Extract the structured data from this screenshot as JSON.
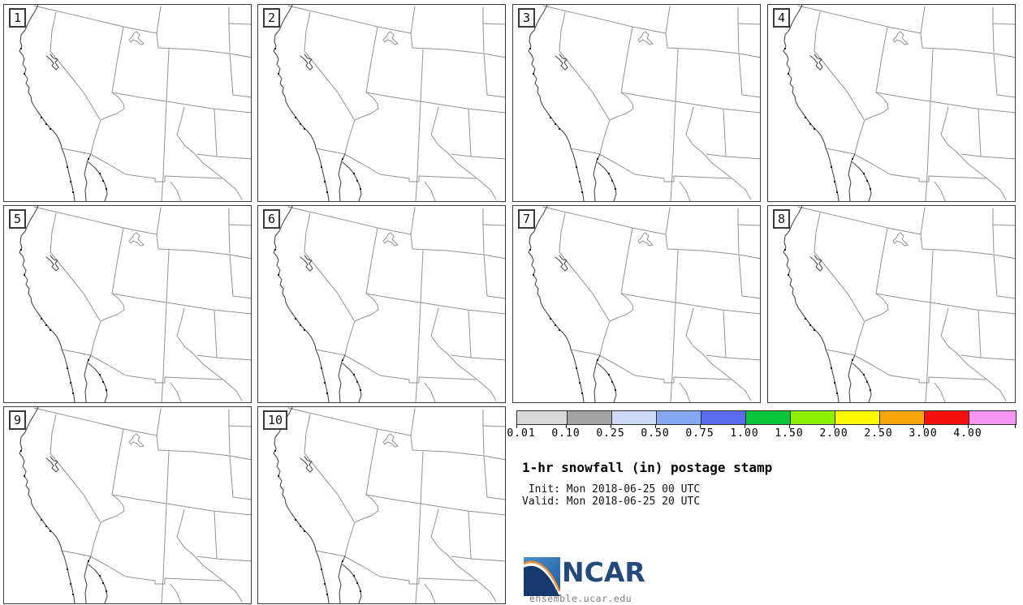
{
  "panels": [
    {
      "label": "1"
    },
    {
      "label": "2"
    },
    {
      "label": "3"
    },
    {
      "label": "4"
    },
    {
      "label": "5"
    },
    {
      "label": "6"
    },
    {
      "label": "7"
    },
    {
      "label": "8"
    },
    {
      "label": "9"
    },
    {
      "label": "10"
    }
  ],
  "legend": {
    "tick_labels": [
      "0.01",
      "0.10",
      "0.25",
      "0.50",
      "0.75",
      "1.00",
      "1.50",
      "2.00",
      "2.50",
      "3.00",
      "4.00"
    ],
    "colors": [
      "#d9d9d9",
      "#a3a3a3",
      "#ced9f8",
      "#85a8f3",
      "#5c6aee",
      "#06c53a",
      "#8ef005",
      "#fdf900",
      "#fba60c",
      "#f5120d",
      "#f996f4"
    ]
  },
  "info": {
    "title": "1-hr snowfall (in) postage stamp",
    "init_line": " Init: Mon 2018-06-25 00 UTC",
    "valid_line": "Valid: Mon 2018-06-25 20 UTC"
  },
  "branding": {
    "logo_text": "NCAR",
    "site_url": "ensemble.ucar.edu",
    "logo_blue_dark": "#16386e",
    "logo_blue_mid": "#2d74b8",
    "logo_orange": "#ee8a2f",
    "ncar_text_color": "#24497b"
  }
}
